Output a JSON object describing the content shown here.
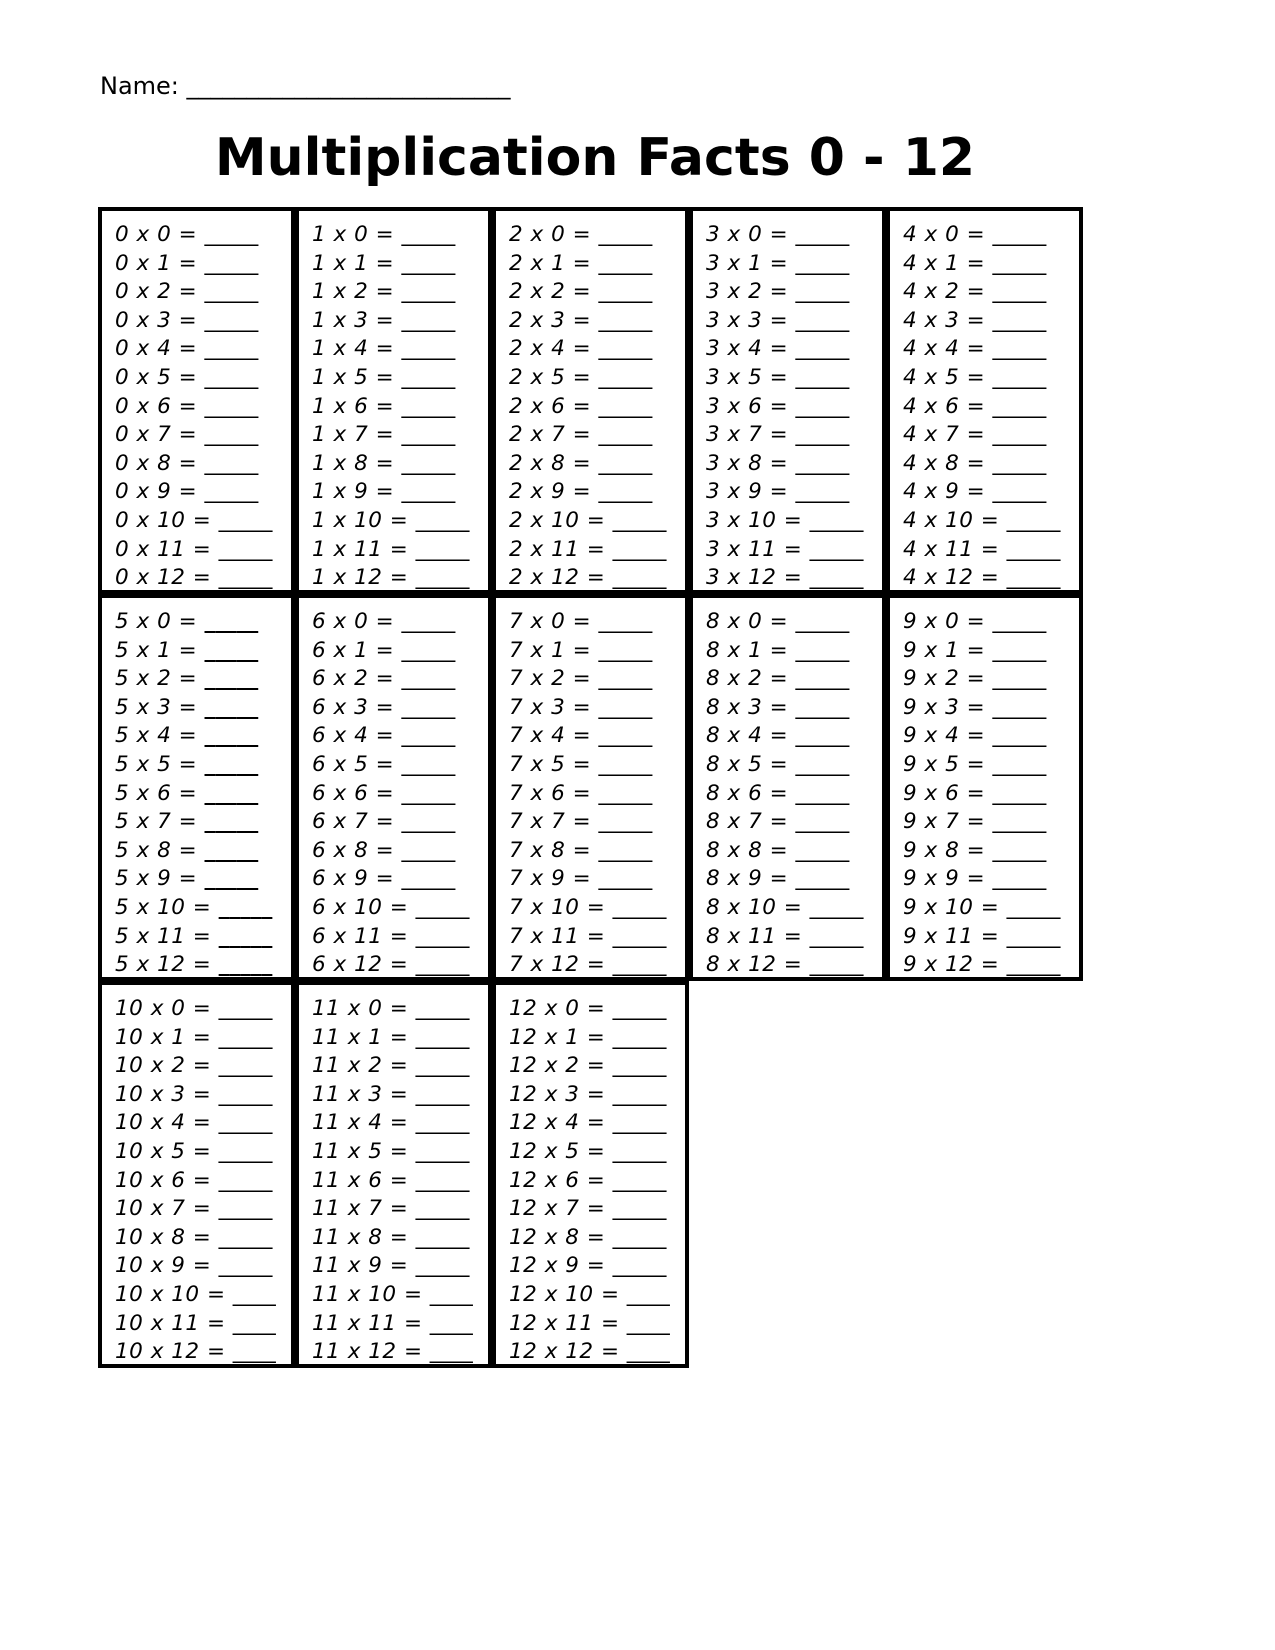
{
  "name_label": "Name: ___________________________",
  "title": "Multiplication Facts 0 - 12",
  "tables": [
    {
      "n": "0",
      "bold": false
    },
    {
      "n": "1",
      "bold": false
    },
    {
      "n": "2",
      "bold": false
    },
    {
      "n": "3",
      "bold": false
    },
    {
      "n": "4",
      "bold": false
    },
    {
      "n": "5",
      "bold": true
    },
    {
      "n": "6",
      "bold": false
    },
    {
      "n": "7",
      "bold": false
    },
    {
      "n": "8",
      "bold": false
    },
    {
      "n": "9",
      "bold": false
    },
    {
      "n": "10",
      "bold": false
    },
    {
      "n": "11",
      "bold": false
    },
    {
      "n": "12",
      "bold": false
    }
  ],
  "facts": {}
}
